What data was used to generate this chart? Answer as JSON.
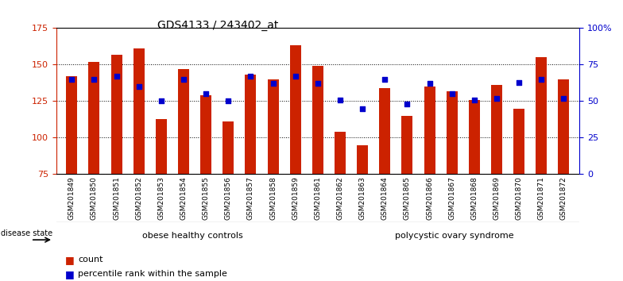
{
  "title": "GDS4133 / 243402_at",
  "samples": [
    "GSM201849",
    "GSM201850",
    "GSM201851",
    "GSM201852",
    "GSM201853",
    "GSM201854",
    "GSM201855",
    "GSM201856",
    "GSM201857",
    "GSM201858",
    "GSM201859",
    "GSM201861",
    "GSM201862",
    "GSM201863",
    "GSM201864",
    "GSM201865",
    "GSM201866",
    "GSM201867",
    "GSM201868",
    "GSM201869",
    "GSM201870",
    "GSM201871",
    "GSM201872"
  ],
  "counts": [
    142,
    152,
    157,
    161,
    113,
    147,
    129,
    111,
    143,
    140,
    163,
    149,
    104,
    95,
    134,
    115,
    135,
    132,
    126,
    136,
    120,
    155,
    140
  ],
  "percentile_ranks": [
    65,
    65,
    67,
    60,
    50,
    65,
    55,
    50,
    67,
    62,
    67,
    62,
    51,
    45,
    65,
    48,
    62,
    55,
    51,
    52,
    63,
    65,
    52
  ],
  "group1_count": 12,
  "group2_count": 11,
  "group1_label": "obese healthy controls",
  "group2_label": "polycystic ovary syndrome",
  "disease_state_label": "disease state",
  "bar_color": "#cc2200",
  "percentile_color": "#0000cc",
  "group1_fill": "#ccffcc",
  "group2_fill": "#66dd66",
  "ylim_left": [
    75,
    175
  ],
  "ylim_right": [
    0,
    100
  ],
  "yticks_left": [
    75,
    100,
    125,
    150,
    175
  ],
  "yticks_right": [
    0,
    25,
    50,
    75,
    100
  ],
  "ytick_labels_right": [
    "0",
    "25",
    "50",
    "75",
    "100%"
  ],
  "bar_width": 0.5,
  "title_fontsize": 10,
  "background_color": "#ffffff",
  "legend_count_label": "count",
  "legend_pct_label": "percentile rank within the sample",
  "xlim": [
    -0.7,
    22.7
  ]
}
